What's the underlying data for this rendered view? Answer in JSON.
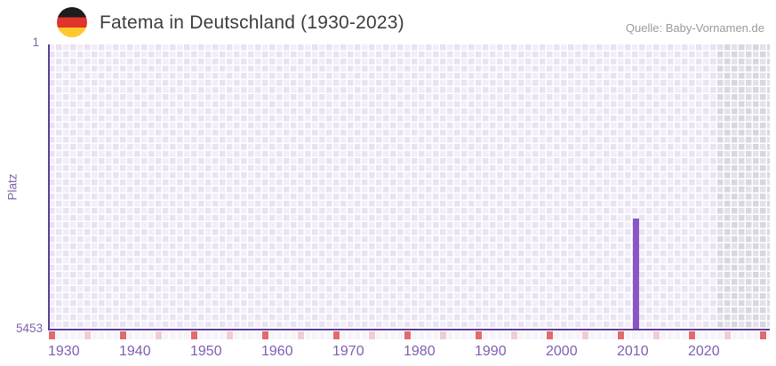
{
  "header": {
    "title": "Fatema in Deutschland (1930-2023)",
    "source": "Quelle: Baby-Vornamen.de"
  },
  "chart_data": {
    "type": "bar",
    "title": "Fatema in Deutschland (1930-2023)",
    "ylabel": "Platz",
    "xlabel": "",
    "y_axis": {
      "top_tick_label": "1",
      "bottom_tick_label": "5453",
      "min": 1,
      "max": 5453,
      "inverted": true
    },
    "x_axis": {
      "data_start_year": 1930,
      "data_end_year": 2023,
      "axis_end_year": 2031,
      "labeled_years": [
        1930,
        1940,
        1950,
        1960,
        1970,
        1980,
        1990,
        2000,
        2010,
        2020
      ],
      "major_tick_years": [
        1930,
        1940,
        1950,
        1960,
        1970,
        1980,
        1990,
        2000,
        2010,
        2020,
        2030
      ],
      "minor_tick_years": [
        1935,
        1945,
        1955,
        1965,
        1975,
        1985,
        1995,
        2005,
        2015,
        2025
      ]
    },
    "series": [
      {
        "name": "Platz",
        "points": [
          {
            "year": 2012,
            "platz": 3335
          }
        ]
      }
    ],
    "future_region": {
      "from_year": 2024,
      "note_visible": false
    },
    "grid": "checkerboard",
    "legend": "none",
    "colors": {
      "bar": "#8a56c6",
      "axis": "#5b3e96",
      "cell_light": "#f2edf8",
      "cell_dark": "#e9e2f3",
      "future_light": "#e4e1e9",
      "future_dark": "#d9d6e0",
      "tick_row_bg": "#f6f3fb",
      "major_tick": "#e16a6c",
      "minor_tick": "#f0ccd7",
      "x_label": "#7d5fb2",
      "y_label": "#7c63ae",
      "title": "#3d3d3d",
      "source": "#9a9a9a",
      "flag_black": "#1d1d1d",
      "flag_red": "#e0332c",
      "flag_gold": "#ffc82e"
    }
  }
}
